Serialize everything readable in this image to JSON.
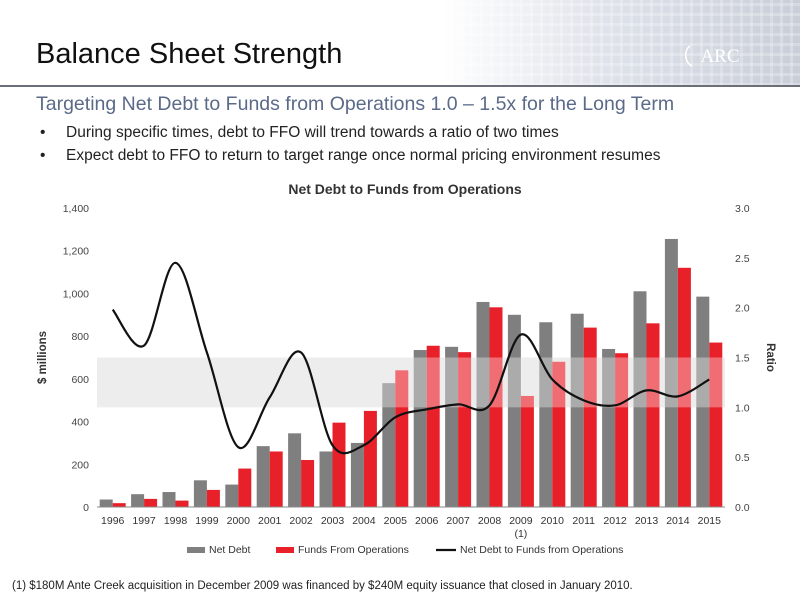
{
  "header": {
    "title": "Balance Sheet Strength",
    "logo_text": "ARC",
    "subtitle": "Targeting Net Debt to Funds from Operations 1.0 – 1.5x for the Long Term"
  },
  "bullets": [
    "During specific times, debt to FFO will trend towards a ratio of two times",
    "Expect debt to FFO to return to target range once normal pricing environment resumes"
  ],
  "bullet_symbol": "•",
  "footnote": "(1)  $180M Ante Creek acquisition in December 2009 was financed by $240M equity issuance that closed in January 2010.",
  "chart_data": {
    "type": "bar",
    "title": "Net Debt to Funds from Operations",
    "categories": [
      "1996",
      "1997",
      "1998",
      "1999",
      "2000",
      "2001",
      "2002",
      "2003",
      "2004",
      "2005",
      "2006",
      "2007",
      "2008",
      "2009",
      "2010",
      "2011",
      "2012",
      "2013",
      "2014",
      "2015"
    ],
    "category_note": {
      "index": 13,
      "text": "(1)"
    },
    "ylabel": "$ millions",
    "y2label": "Ratio",
    "ylim": [
      0,
      1400
    ],
    "yticks": [
      "0",
      "200",
      "400",
      "600",
      "800",
      "1,000",
      "1,200",
      "1,400"
    ],
    "y2lim": [
      0,
      3.0
    ],
    "y2ticks": [
      "0.0",
      "0.5",
      "1.0",
      "1.5",
      "2.0",
      "2.5",
      "3.0"
    ],
    "target_band": [
      1.0,
      1.5
    ],
    "series": [
      {
        "name": "Net Debt",
        "type": "bar",
        "color": "#7f7f7f",
        "values": [
          35,
          60,
          70,
          125,
          105,
          285,
          345,
          260,
          300,
          580,
          735,
          750,
          960,
          900,
          865,
          905,
          740,
          1010,
          1255,
          985
        ]
      },
      {
        "name": "Funds From Operations",
        "type": "bar",
        "color": "#e8202a",
        "values": [
          18,
          38,
          30,
          80,
          180,
          260,
          220,
          395,
          450,
          640,
          755,
          725,
          935,
          520,
          680,
          840,
          720,
          860,
          1120,
          770
        ]
      },
      {
        "name": "Net Debt to Funds from Operations",
        "type": "line",
        "axis": "y2",
        "color": "#111111",
        "values": [
          1.98,
          1.62,
          2.45,
          1.55,
          0.6,
          1.1,
          1.55,
          0.62,
          0.62,
          0.9,
          0.98,
          1.03,
          1.02,
          1.73,
          1.28,
          1.07,
          1.02,
          1.17,
          1.11,
          1.28
        ]
      }
    ],
    "legend_position": "bottom"
  }
}
